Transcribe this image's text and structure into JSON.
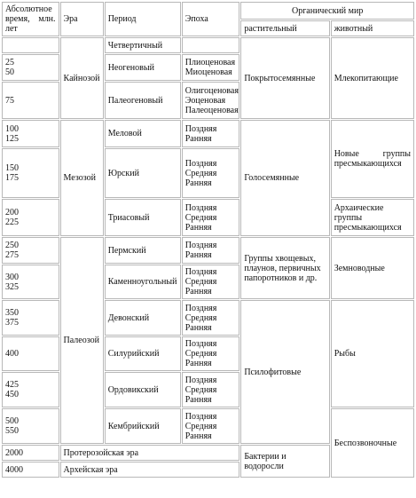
{
  "header": {
    "time_line1": "Абсолютное",
    "time_line2": "время,",
    "time_line2b": "млн.",
    "time_line3": "лет",
    "era": "Эра",
    "period": "Период",
    "epoch": "Эпоха",
    "organic": "Органический мир",
    "plant": "растительный",
    "animal": "животный"
  },
  "eras": {
    "cenozoic": "Кайнозой",
    "mesozoic": "Мезозой",
    "paleozoic": "Палеозой",
    "proterozoic": "Протерозойская эра",
    "archean": "Архейская эра"
  },
  "periods": {
    "quaternary": "Четвертичный",
    "neogene": "Неогеновый",
    "paleogene": "Палеогеновый",
    "cretaceous": "Меловой",
    "jurassic": "Юрский",
    "triassic": "Триасовый",
    "permian": "Пермский",
    "carboniferous": "Каменноугольный",
    "devonian": "Девонский",
    "silurian": "Силурийский",
    "ordovician": "Ордовикский",
    "cambrian": "Кембрийский"
  },
  "times": {
    "neogene_a": "25",
    "neogene_b": "50",
    "paleogene": "75",
    "cretaceous_a": "100",
    "cretaceous_b": "125",
    "jurassic_a": "150",
    "jurassic_b": "175",
    "triassic_a": "200",
    "triassic_b": "225",
    "permian_a": "250",
    "permian_b": "275",
    "carbon_a": "300",
    "carbon_b": "325",
    "devonian_a": "350",
    "devonian_b": "375",
    "silurian": "400",
    "ordovician_a": "425",
    "ordovician_b": "450",
    "cambrian_a": "500",
    "cambrian_b": "550",
    "proterozoic": "2000",
    "archean": "4000"
  },
  "epochs": {
    "pliocene": "Плиоценовая",
    "miocene": "Миоценовая",
    "oligocene": "Олигоценовая",
    "eocene": "Эоценовая",
    "paleocene": "Палеоценовая",
    "late": "Поздняя",
    "middle": "Средняя",
    "early": "Ранняя"
  },
  "plants": {
    "angiosperms": "Покрытосемянные",
    "gymnosperms": "Голосемянные",
    "ferns": "Группы хвощевых, плаунов, первичных папоротников и др.",
    "psilophytes": "Псилофитовые",
    "bacteria": "Бактерии и водоросли"
  },
  "animals": {
    "mammals": "Млекопитающие",
    "new_reptiles_1": "Новые группы",
    "new_reptiles_2": "пресмыкающихся",
    "archaic_reptiles_1": "Архаические",
    "archaic_reptiles_2": "группы",
    "archaic_reptiles_3": "пресмыкающихся",
    "amphibians": "Земноводные",
    "fish": "Рыбы",
    "invertebrates": "Беспозвоночные"
  }
}
